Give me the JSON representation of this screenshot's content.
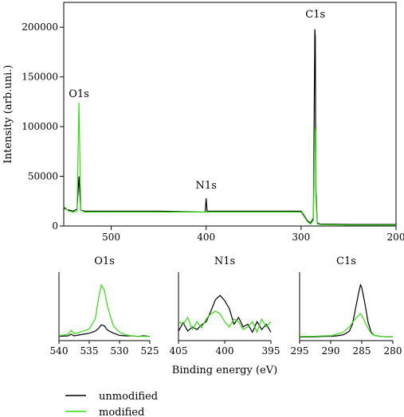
{
  "chart_data": [
    {
      "type": "line",
      "title": "",
      "xlabel": "",
      "ylabel": "Intensity (arb.uni.)",
      "xlim": [
        550,
        200
      ],
      "ylim": [
        0,
        225000
      ],
      "x_ticks": [
        500,
        400,
        300,
        200
      ],
      "y_ticks": [
        0,
        50000,
        100000,
        150000,
        200000
      ],
      "grid": false,
      "annotations": [
        {
          "text": "O1s",
          "x": 534,
          "y": 125000
        },
        {
          "text": "N1s",
          "x": 400,
          "y": 33000
        },
        {
          "text": "C1s",
          "x": 285,
          "y": 205000
        }
      ],
      "series": [
        {
          "name": "unmodified",
          "color": "#000000",
          "x": [
            550,
            545,
            540,
            536,
            534,
            532,
            528,
            500,
            450,
            401,
            400,
            399,
            350,
            310,
            300,
            293,
            290,
            287,
            285.5,
            285,
            284.5,
            283,
            280,
            250,
            200
          ],
          "values": [
            18000,
            16000,
            15000,
            17000,
            50000,
            16000,
            15000,
            15000,
            15000,
            14000,
            28000,
            15000,
            15000,
            15000,
            15000,
            5000,
            3000,
            8000,
            198000,
            190000,
            40000,
            3000,
            2000,
            1500,
            1500
          ]
        },
        {
          "name": "modified",
          "color": "#33dd11",
          "x": [
            550,
            545,
            540,
            536,
            534,
            532,
            528,
            500,
            450,
            400,
            350,
            310,
            300,
            293,
            290,
            287,
            285.5,
            285,
            284.5,
            283,
            280,
            250,
            200
          ],
          "values": [
            20000,
            15000,
            14000,
            15000,
            124000,
            16000,
            14000,
            14000,
            14000,
            14000,
            14000,
            14000,
            14000,
            4000,
            2000,
            6000,
            100000,
            95000,
            30000,
            2000,
            1500,
            1000,
            1000
          ]
        }
      ]
    },
    {
      "type": "line",
      "title": "O1s",
      "xlim": [
        540,
        525
      ],
      "x_ticks": [
        540,
        535,
        530,
        525
      ],
      "grid": false,
      "series": [
        {
          "name": "unmodified",
          "color": "#000000",
          "x": [
            540,
            538.5,
            538,
            537.5,
            537,
            536,
            535,
            534,
            533.5,
            533,
            532.5,
            532,
            531,
            530,
            529,
            528,
            527,
            526,
            525
          ],
          "values": [
            0.02,
            0.03,
            0.06,
            0.03,
            0.04,
            0.06,
            0.08,
            0.12,
            0.17,
            0.24,
            0.22,
            0.14,
            0.08,
            0.04,
            0.03,
            0.03,
            0.02,
            0.03,
            0.02
          ]
        },
        {
          "name": "modified",
          "color": "#33dd11",
          "x": [
            540,
            538.5,
            538,
            537.5,
            537,
            536,
            535,
            534,
            533.5,
            533,
            532.5,
            532,
            531.5,
            531,
            530,
            529,
            528,
            527,
            525
          ],
          "values": [
            0.03,
            0.06,
            0.14,
            0.07,
            0.08,
            0.12,
            0.16,
            0.35,
            0.72,
            1.0,
            0.9,
            0.6,
            0.4,
            0.22,
            0.1,
            0.05,
            0.03,
            0.02,
            0.02
          ]
        }
      ]
    },
    {
      "type": "line",
      "title": "N1s",
      "xlim": [
        405,
        395
      ],
      "x_ticks": [
        405,
        400,
        395
      ],
      "grid": false,
      "series": [
        {
          "name": "unmodified",
          "color": "#000000",
          "x": [
            405,
            404.5,
            404,
            403.5,
            403,
            402.5,
            402,
            401.5,
            401,
            400.5,
            400,
            399.5,
            399,
            398.5,
            398,
            397.5,
            397,
            396.5,
            396,
            395.5,
            395
          ],
          "values": [
            0.12,
            0.28,
            0.12,
            0.2,
            0.15,
            0.24,
            0.3,
            0.5,
            0.72,
            0.8,
            0.7,
            0.55,
            0.25,
            0.38,
            0.2,
            0.25,
            0.1,
            0.3,
            0.15,
            0.25,
            0.1
          ]
        },
        {
          "name": "modified",
          "color": "#33dd11",
          "x": [
            405,
            404.5,
            404,
            403.5,
            403,
            402.5,
            402,
            401.5,
            401,
            400.5,
            400,
            399.5,
            399,
            398.5,
            398,
            397.5,
            397,
            396.5,
            396,
            395.5,
            395
          ],
          "values": [
            0.3,
            0.25,
            0.38,
            0.15,
            0.3,
            0.18,
            0.35,
            0.45,
            0.5,
            0.45,
            0.3,
            0.2,
            0.35,
            0.3,
            0.15,
            0.2,
            0.3,
            0.1,
            0.35,
            0.2,
            0.3
          ]
        }
      ]
    },
    {
      "type": "line",
      "title": "C1s",
      "xlim": [
        295,
        280
      ],
      "x_ticks": [
        295,
        290,
        285,
        280
      ],
      "grid": false,
      "series": [
        {
          "name": "unmodified",
          "color": "#000000",
          "x": [
            295,
            293,
            291,
            290,
            289,
            288,
            287.5,
            287,
            286.5,
            286,
            285.5,
            285.2,
            285,
            284.5,
            284,
            283.5,
            283,
            282,
            281,
            280
          ],
          "values": [
            0.01,
            0.01,
            0.02,
            0.02,
            0.03,
            0.05,
            0.08,
            0.12,
            0.25,
            0.55,
            0.85,
            1.0,
            0.95,
            0.65,
            0.3,
            0.1,
            0.04,
            0.02,
            0.01,
            0.01
          ]
        },
        {
          "name": "modified",
          "color": "#33dd11",
          "x": [
            295,
            293,
            291,
            290,
            289,
            288,
            287.5,
            287,
            286.5,
            286,
            285.5,
            285.2,
            285,
            284.5,
            284,
            283.5,
            283,
            282,
            281,
            280
          ],
          "values": [
            0.02,
            0.02,
            0.03,
            0.03,
            0.06,
            0.1,
            0.15,
            0.2,
            0.28,
            0.36,
            0.42,
            0.45,
            0.42,
            0.3,
            0.18,
            0.08,
            0.04,
            0.02,
            0.01,
            0.01
          ]
        }
      ]
    }
  ],
  "shared_xlabel": "Binding energy (eV)",
  "legend": {
    "placement": "bottom-left",
    "entries": [
      {
        "label": "unmodified",
        "color": "#000000"
      },
      {
        "label": "modified",
        "color": "#33dd11"
      }
    ]
  }
}
